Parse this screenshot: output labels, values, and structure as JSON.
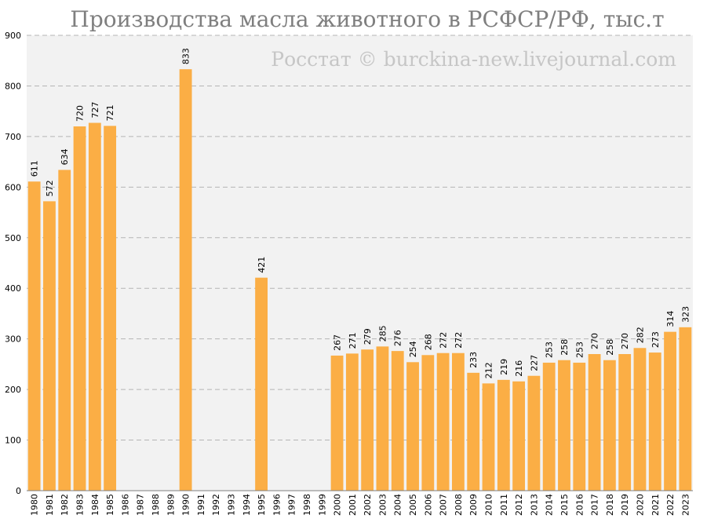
{
  "chart_data": {
    "type": "bar",
    "title": "Производства масла животного в РСФСР/РФ, тыс.т",
    "watermark": "Росстат © burckina-new.livejournal.com",
    "xlabel": "",
    "ylabel": "",
    "ylim": [
      0,
      900
    ],
    "yticks": [
      0,
      100,
      200,
      300,
      400,
      500,
      600,
      700,
      800,
      900
    ],
    "grid": true,
    "legend": "none",
    "bar_color": "#fbae45",
    "plot_background": "#f2f2f2",
    "categories": [
      "1980",
      "1981",
      "1982",
      "1983",
      "1984",
      "1985",
      "1986",
      "1987",
      "1988",
      "1989",
      "1990",
      "1991",
      "1992",
      "1993",
      "1994",
      "1995",
      "1996",
      "1997",
      "1998",
      "1999",
      "2000",
      "2001",
      "2002",
      "2003",
      "2004",
      "2005",
      "2006",
      "2007",
      "2008",
      "2009",
      "2010",
      "2011",
      "2012",
      "2013",
      "2014",
      "2015",
      "2016",
      "2017",
      "2018",
      "2019",
      "2020",
      "2021",
      "2022",
      "2023"
    ],
    "values": [
      611,
      572,
      634,
      720,
      727,
      721,
      null,
      null,
      null,
      null,
      833,
      null,
      null,
      null,
      null,
      421,
      null,
      null,
      null,
      null,
      267,
      271,
      279,
      285,
      276,
      254,
      268,
      272,
      272,
      233,
      212,
      219,
      216,
      227,
      253,
      258,
      253,
      270,
      258,
      270,
      282,
      273,
      314,
      323
    ]
  }
}
